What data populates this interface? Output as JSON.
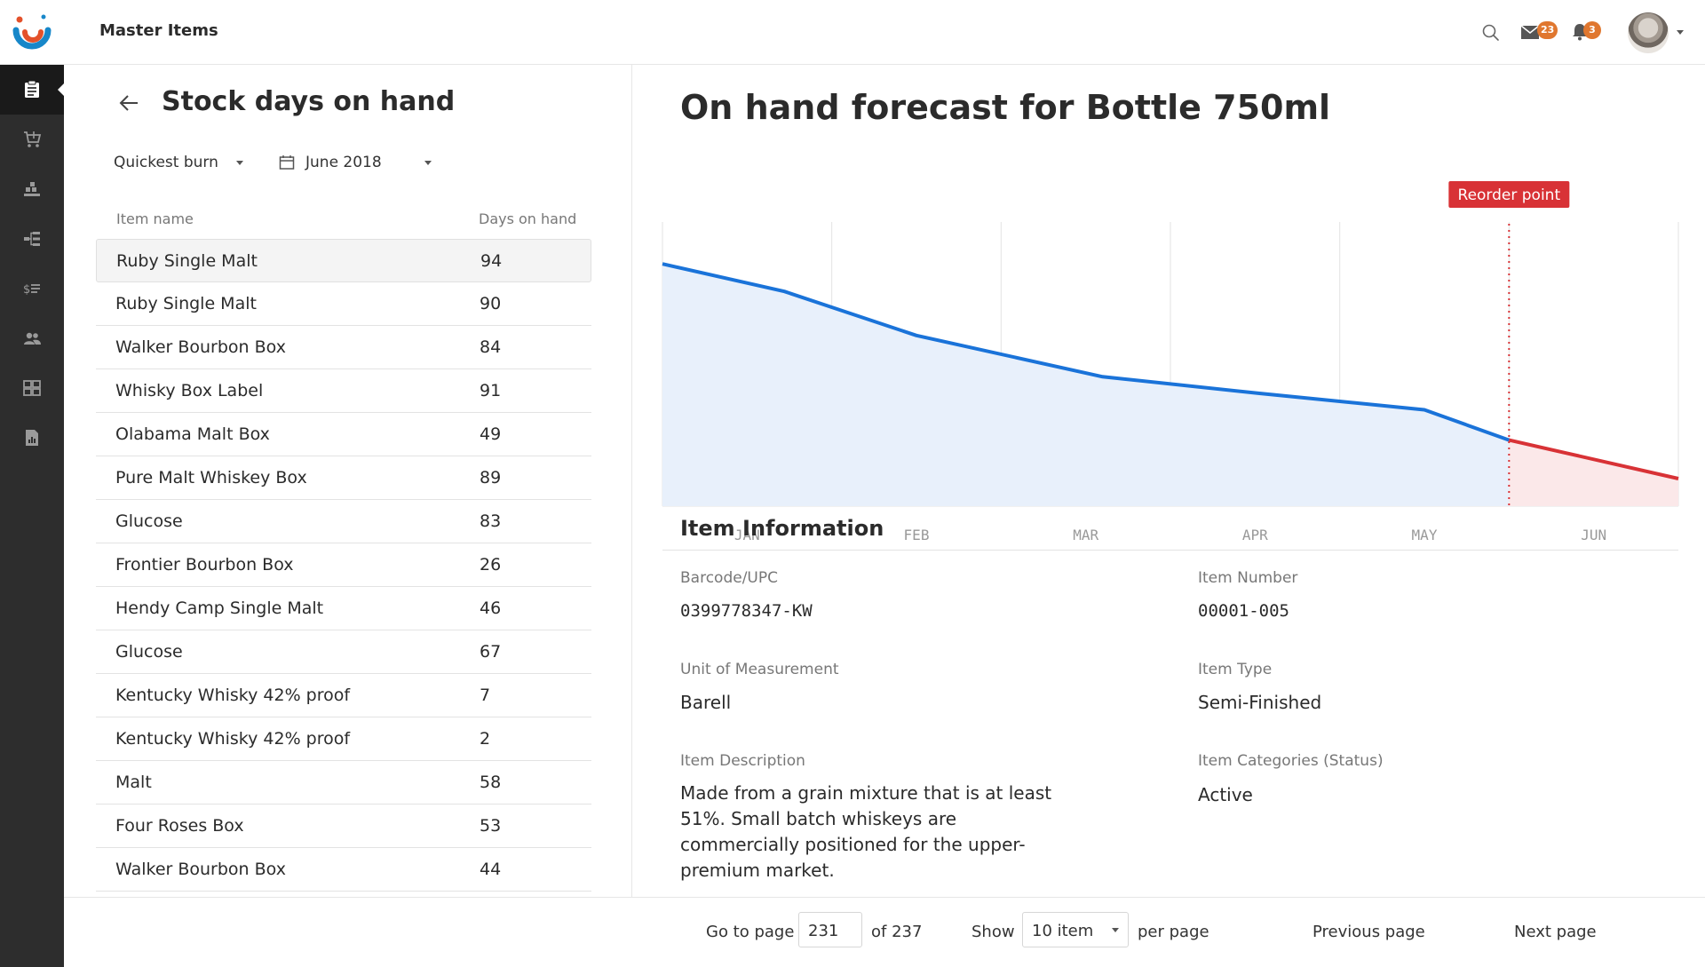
{
  "header": {
    "app_title": "Master Items",
    "mail_count": "23",
    "notification_count": "3"
  },
  "sidebar": {
    "items": [
      {
        "icon": "clipboard-icon",
        "active": true
      },
      {
        "icon": "cart-icon"
      },
      {
        "icon": "warehouse-icon"
      },
      {
        "icon": "hierarchy-icon"
      },
      {
        "icon": "pricing-icon"
      },
      {
        "icon": "users-icon"
      },
      {
        "icon": "dashboard-icon"
      },
      {
        "icon": "report-icon"
      }
    ]
  },
  "left_panel": {
    "title": "Stock days on hand",
    "sort_filter": "Quickest burn",
    "date_filter": "June 2018",
    "columns": {
      "name": "Item name",
      "days": "Days on hand"
    },
    "rows": [
      {
        "name": "Ruby Single Malt",
        "days": "94"
      },
      {
        "name": "Ruby Single Malt",
        "days": "90"
      },
      {
        "name": "Walker Bourbon Box",
        "days": "84"
      },
      {
        "name": "Whisky Box Label",
        "days": "91"
      },
      {
        "name": "Olabama Malt Box",
        "days": "49"
      },
      {
        "name": "Pure Malt Whiskey Box",
        "days": "89"
      },
      {
        "name": "Glucose",
        "days": "83"
      },
      {
        "name": "Frontier Bourbon Box",
        "days": "26"
      },
      {
        "name": "Hendy Camp Single Malt",
        "days": "46"
      },
      {
        "name": "Glucose",
        "days": "67"
      },
      {
        "name": "Kentucky Whisky 42% proof",
        "days": "7"
      },
      {
        "name": "Kentucky Whisky 42% proof",
        "days": "2"
      },
      {
        "name": "Malt",
        "days": "58"
      },
      {
        "name": "Four Roses Box",
        "days": "53"
      },
      {
        "name": "Walker Bourbon Box",
        "days": "44"
      }
    ]
  },
  "right_panel": {
    "title": "On hand forecast for Bottle 750ml",
    "info_title": "Item Information",
    "fields": {
      "barcode_label": "Barcode/UPC",
      "barcode_value": "0399778347-KW",
      "item_number_label": "Item Number",
      "item_number_value": "00001-005",
      "uom_label": "Unit of Measurement",
      "uom_value": "Barell",
      "item_type_label": "Item Type",
      "item_type_value": "Semi-Finished",
      "description_label": "Item Description",
      "description_value": "Made from a grain mixture that is at least 51%. Small batch whiskeys are commercially positioned for the upper-premium market.",
      "categories_label": "Item Categories (Status)",
      "categories_value": "Active"
    }
  },
  "chart_data": {
    "type": "area",
    "categories": [
      "JAN",
      "FEB",
      "MAR",
      "APR",
      "MAY",
      "JUN"
    ],
    "x": [
      0,
      0.72,
      1.5,
      2.6,
      3.52,
      4.5,
      5,
      6
    ],
    "series": [
      {
        "values": [
          88,
          78,
          62,
          47,
          41,
          35,
          24,
          10
        ],
        "color": "#1a73d9",
        "fill": "#e8f0fb"
      }
    ],
    "forecast_start_x": 5,
    "forecast_color": "#d83236",
    "forecast_fill": "#fbe8e9",
    "reorder_line_x": 5,
    "reorder_label": "Reorder point",
    "ylim": [
      0,
      100
    ],
    "grid": true
  },
  "footer": {
    "go_to_label": "Go to page",
    "page_value": "231",
    "of_label": "of 237",
    "show_label": "Show",
    "show_value": "10 item",
    "per_page_label": "per page",
    "prev_label": "Previous page",
    "next_label": "Next page"
  }
}
